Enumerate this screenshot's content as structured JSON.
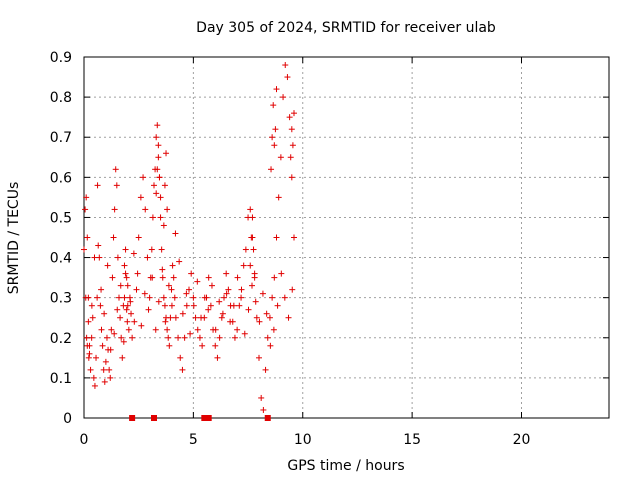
{
  "chart_data": {
    "type": "scatter",
    "title": "Day 305 of 2024, SRMTID for receiver ulab",
    "xlabel": "GPS time / hours",
    "ylabel": "SRMTID / TECUs",
    "xlim": [
      0,
      24
    ],
    "ylim": [
      0,
      0.9
    ],
    "xticks": [
      0,
      5,
      10,
      15,
      20
    ],
    "xtick_labels": [
      "0",
      "5",
      "10",
      "15",
      "20"
    ],
    "yticks": [
      0,
      0.1,
      0.2,
      0.3,
      0.4,
      0.5,
      0.6,
      0.7,
      0.8,
      0.9
    ],
    "ytick_labels": [
      "0",
      "0.1",
      "0.2",
      "0.3",
      "0.4",
      "0.5",
      "0.6",
      "0.7",
      "0.8",
      "0.9"
    ],
    "grid": true,
    "marker": "+",
    "color": "#e00000",
    "series": [
      {
        "name": "SRMTID",
        "x": [
          0.0,
          0.05,
          0.1,
          0.15,
          0.2,
          0.25,
          0.3,
          0.35,
          0.4,
          0.45,
          0.5,
          0.55,
          0.6,
          0.65,
          0.7,
          0.75,
          0.8,
          0.85,
          0.9,
          0.95,
          1.0,
          1.05,
          1.1,
          1.15,
          1.2,
          1.25,
          1.3,
          1.35,
          1.4,
          1.45,
          1.5,
          1.55,
          1.6,
          1.65,
          1.7,
          1.75,
          1.8,
          1.85,
          1.9,
          1.95,
          2.0,
          2.05,
          2.1,
          2.15,
          2.2,
          2.3,
          2.4,
          2.5,
          2.6,
          2.7,
          2.8,
          2.9,
          3.0,
          3.05,
          3.1,
          3.15,
          3.2,
          3.25,
          3.3,
          3.35,
          3.4,
          3.45,
          3.5,
          3.55,
          3.6,
          3.65,
          3.7,
          3.75,
          3.8,
          3.85,
          3.9,
          3.95,
          4.0,
          4.05,
          4.1,
          4.15,
          4.2,
          4.3,
          4.4,
          4.5,
          4.6,
          4.7,
          4.8,
          4.9,
          5.0,
          5.1,
          5.2,
          5.3,
          5.4,
          5.5,
          5.6,
          5.7,
          5.8,
          5.9,
          6.0,
          6.1,
          6.2,
          6.3,
          6.4,
          6.5,
          6.6,
          6.7,
          6.8,
          6.9,
          7.0,
          7.1,
          7.2,
          7.3,
          7.4,
          7.5,
          7.6,
          7.7,
          7.8,
          7.9,
          8.0,
          8.1,
          8.2,
          8.3,
          8.4,
          8.5,
          8.6,
          8.7,
          8.8,
          8.9,
          9.0,
          9.1,
          9.2,
          9.3,
          9.4,
          9.5,
          9.6,
          0.08,
          0.12,
          0.22,
          0.36,
          0.48,
          0.62,
          0.78,
          0.92,
          1.08,
          1.22,
          1.38,
          1.52,
          1.68,
          1.82,
          1.98,
          2.12,
          2.28,
          2.45,
          2.62,
          2.78,
          2.95,
          3.12,
          3.28,
          3.42,
          3.58,
          3.72,
          3.88,
          4.02,
          4.18,
          4.35,
          4.52,
          4.68,
          4.85,
          5.02,
          5.18,
          5.35,
          5.52,
          5.68,
          5.85,
          6.02,
          6.18,
          6.35,
          6.52,
          6.68,
          6.85,
          7.02,
          7.18,
          7.35,
          7.52,
          7.68,
          7.85,
          8.02,
          8.18,
          8.35,
          8.52,
          8.68,
          8.85,
          9.02,
          9.18,
          9.35,
          9.52,
          8.55,
          8.6,
          8.65,
          8.7,
          8.75,
          8.8,
          9.45,
          9.5,
          9.55,
          9.6,
          3.65,
          3.7,
          3.75,
          3.8,
          3.3,
          3.35,
          3.4,
          3.45,
          3.5,
          0.15,
          0.2,
          0.25,
          1.85,
          1.9,
          1.95,
          2.0,
          7.6,
          7.65,
          7.7,
          7.75,
          7.8,
          2.2,
          3.2,
          5.5,
          5.6,
          5.7,
          8.4
        ],
        "y": [
          0.42,
          0.52,
          0.55,
          0.45,
          0.3,
          0.18,
          0.12,
          0.2,
          0.25,
          0.1,
          0.08,
          0.15,
          0.3,
          0.43,
          0.4,
          0.28,
          0.22,
          0.18,
          0.12,
          0.09,
          0.14,
          0.2,
          0.17,
          0.12,
          0.1,
          0.22,
          0.35,
          0.45,
          0.52,
          0.62,
          0.58,
          0.4,
          0.3,
          0.25,
          0.2,
          0.15,
          0.28,
          0.38,
          0.42,
          0.35,
          0.28,
          0.22,
          0.3,
          0.26,
          0.2,
          0.24,
          0.32,
          0.45,
          0.55,
          0.6,
          0.52,
          0.4,
          0.3,
          0.35,
          0.42,
          0.5,
          0.58,
          0.62,
          0.7,
          0.73,
          0.68,
          0.6,
          0.5,
          0.42,
          0.35,
          0.3,
          0.28,
          0.25,
          0.22,
          0.2,
          0.18,
          0.25,
          0.32,
          0.38,
          0.35,
          0.3,
          0.25,
          0.2,
          0.15,
          0.12,
          0.2,
          0.28,
          0.32,
          0.36,
          0.3,
          0.25,
          0.22,
          0.2,
          0.18,
          0.25,
          0.3,
          0.35,
          0.28,
          0.22,
          0.18,
          0.15,
          0.2,
          0.25,
          0.3,
          0.36,
          0.32,
          0.28,
          0.24,
          0.2,
          0.22,
          0.28,
          0.32,
          0.38,
          0.42,
          0.5,
          0.52,
          0.45,
          0.35,
          0.25,
          0.15,
          0.05,
          0.02,
          0.12,
          0.2,
          0.25,
          0.3,
          0.35,
          0.45,
          0.55,
          0.65,
          0.8,
          0.88,
          0.85,
          0.75,
          0.6,
          0.45,
          0.3,
          0.2,
          0.15,
          0.28,
          0.4,
          0.58,
          0.32,
          0.26,
          0.38,
          0.17,
          0.21,
          0.27,
          0.33,
          0.19,
          0.24,
          0.29,
          0.41,
          0.36,
          0.23,
          0.31,
          0.27,
          0.35,
          0.22,
          0.29,
          0.37,
          0.24,
          0.33,
          0.28,
          0.46,
          0.39,
          0.26,
          0.31,
          0.21,
          0.28,
          0.34,
          0.25,
          0.3,
          0.27,
          0.33,
          0.22,
          0.29,
          0.26,
          0.31,
          0.24,
          0.28,
          0.35,
          0.3,
          0.21,
          0.27,
          0.33,
          0.29,
          0.24,
          0.31,
          0.26,
          0.18,
          0.22,
          0.28,
          0.36,
          0.3,
          0.25,
          0.32,
          0.62,
          0.7,
          0.78,
          0.68,
          0.72,
          0.82,
          0.65,
          0.72,
          0.68,
          0.76,
          0.48,
          0.58,
          0.66,
          0.52,
          0.56,
          0.62,
          0.65,
          0.6,
          0.55,
          0.18,
          0.24,
          0.16,
          0.3,
          0.36,
          0.27,
          0.33,
          0.38,
          0.45,
          0.5,
          0.42,
          0.36,
          0,
          0,
          0,
          0,
          0,
          0
        ]
      }
    ]
  }
}
